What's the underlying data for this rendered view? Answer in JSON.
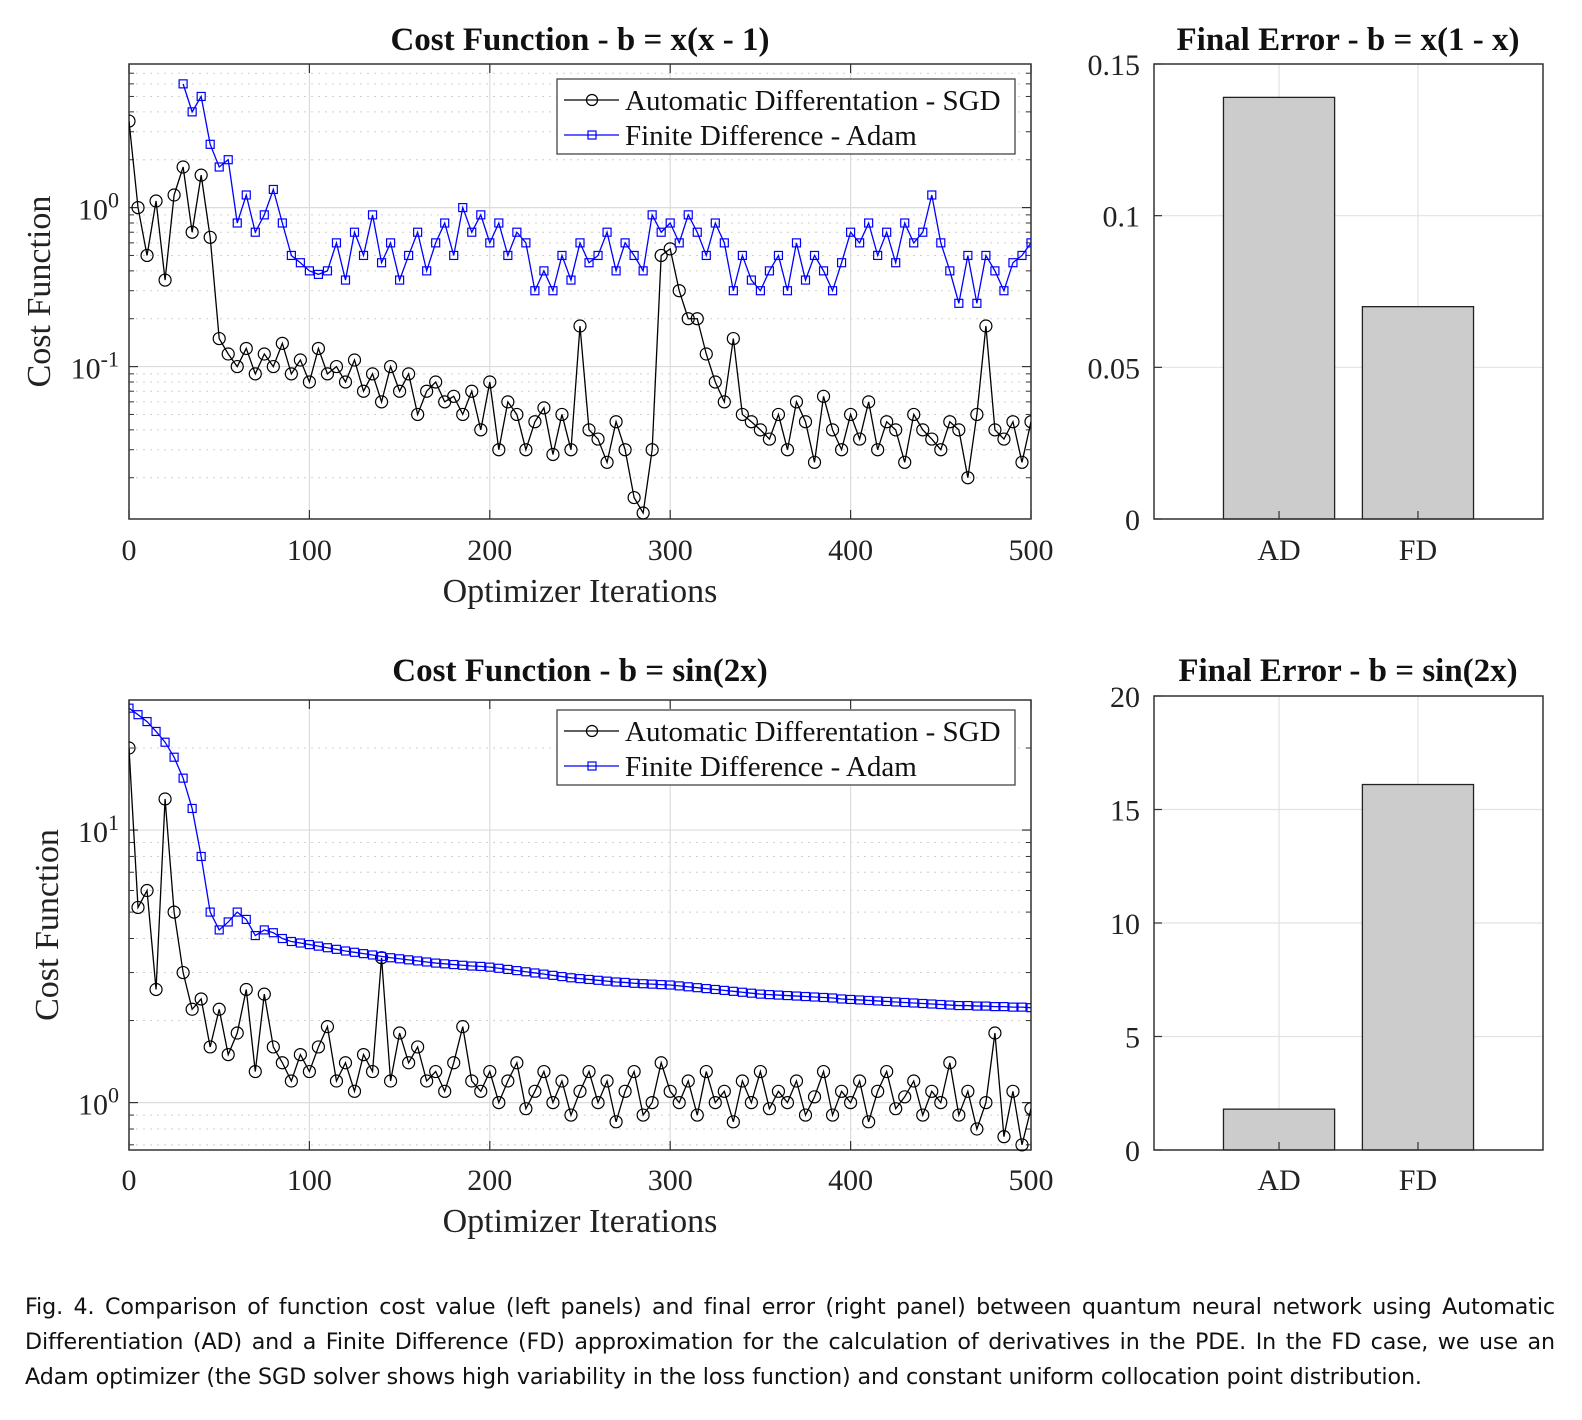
{
  "chart_data": [
    {
      "type": "line",
      "title": "Cost Function - b = x(x - 1)",
      "xlabel": "Optimizer Iterations",
      "ylabel": "Cost Function",
      "xlim": [
        0,
        500
      ],
      "ylim": [
        0.011,
        8
      ],
      "yscale": "log",
      "grid": true,
      "legend_placement": "top-right",
      "x_tick_labels": [
        "0",
        "100",
        "200",
        "300",
        "400",
        "500"
      ],
      "y_tick_labels": [
        "10^-1",
        "10^0"
      ],
      "x": [
        0,
        5,
        10,
        15,
        20,
        25,
        30,
        35,
        40,
        45,
        50,
        55,
        60,
        65,
        70,
        75,
        80,
        85,
        90,
        95,
        100,
        105,
        110,
        115,
        120,
        125,
        130,
        135,
        140,
        145,
        150,
        155,
        160,
        165,
        170,
        175,
        180,
        185,
        190,
        195,
        200,
        205,
        210,
        215,
        220,
        225,
        230,
        235,
        240,
        245,
        250,
        255,
        260,
        265,
        270,
        275,
        280,
        285,
        290,
        295,
        300,
        305,
        310,
        315,
        320,
        325,
        330,
        335,
        340,
        345,
        350,
        355,
        360,
        365,
        370,
        375,
        380,
        385,
        390,
        395,
        400,
        405,
        410,
        415,
        420,
        425,
        430,
        435,
        440,
        445,
        450,
        455,
        460,
        465,
        470,
        475,
        480,
        485,
        490,
        495,
        500
      ],
      "series": [
        {
          "name": "Automatic Differentation - SGD",
          "color": "#000000",
          "marker": "circle",
          "values": [
            3.5,
            1.0,
            0.5,
            1.1,
            0.35,
            1.2,
            1.8,
            0.7,
            1.6,
            0.65,
            0.15,
            0.12,
            0.1,
            0.13,
            0.09,
            0.12,
            0.1,
            0.14,
            0.09,
            0.11,
            0.08,
            0.13,
            0.09,
            0.1,
            0.08,
            0.11,
            0.07,
            0.09,
            0.06,
            0.1,
            0.07,
            0.09,
            0.05,
            0.07,
            0.08,
            0.06,
            0.065,
            0.05,
            0.07,
            0.04,
            0.08,
            0.03,
            0.06,
            0.05,
            0.03,
            0.045,
            0.055,
            0.028,
            0.05,
            0.03,
            0.18,
            0.04,
            0.035,
            0.025,
            0.045,
            0.03,
            0.015,
            0.012,
            0.03,
            0.5,
            0.55,
            0.3,
            0.2,
            0.2,
            0.12,
            0.08,
            0.06,
            0.15,
            0.05,
            0.045,
            0.04,
            0.035,
            0.05,
            0.03,
            0.06,
            0.045,
            0.025,
            0.065,
            0.04,
            0.03,
            0.05,
            0.035,
            0.06,
            0.03,
            0.045,
            0.04,
            0.025,
            0.05,
            0.04,
            0.035,
            0.03,
            0.045,
            0.04,
            0.02,
            0.05,
            0.18,
            0.04,
            0.035,
            0.045,
            0.025,
            0.045
          ]
        },
        {
          "name": "Finite Difference - Adam",
          "color": "#0000ff",
          "marker": "square",
          "values": [
            null,
            null,
            null,
            null,
            null,
            null,
            6,
            4,
            5,
            2.5,
            1.8,
            2,
            0.8,
            1.2,
            0.7,
            0.9,
            1.3,
            0.8,
            0.5,
            0.45,
            0.4,
            0.38,
            0.4,
            0.6,
            0.35,
            0.7,
            0.5,
            0.9,
            0.45,
            0.6,
            0.35,
            0.5,
            0.7,
            0.4,
            0.6,
            0.8,
            0.5,
            1.0,
            0.7,
            0.9,
            0.6,
            0.8,
            0.5,
            0.7,
            0.6,
            0.3,
            0.4,
            0.3,
            0.5,
            0.35,
            0.6,
            0.45,
            0.5,
            0.7,
            0.4,
            0.6,
            0.5,
            0.4,
            0.9,
            0.7,
            0.8,
            0.6,
            0.9,
            0.7,
            0.5,
            0.8,
            0.6,
            0.3,
            0.5,
            0.35,
            0.3,
            0.4,
            0.5,
            0.3,
            0.6,
            0.35,
            0.5,
            0.4,
            0.3,
            0.45,
            0.7,
            0.6,
            0.8,
            0.5,
            0.7,
            0.45,
            0.8,
            0.6,
            0.7,
            1.2,
            0.6,
            0.4,
            0.25,
            0.5,
            0.25,
            0.5,
            0.4,
            0.3,
            0.45,
            0.5,
            0.6
          ]
        }
      ]
    },
    {
      "type": "bar",
      "title": "Final Error - b = x(1 - x)",
      "categories": [
        "AD",
        "FD"
      ],
      "values": [
        0.139,
        0.07
      ],
      "ylim": [
        0,
        0.15
      ],
      "y_tick_labels": [
        "0",
        "0.05",
        "0.1",
        "0.15"
      ],
      "y_ticks": [
        0,
        0.05,
        0.1,
        0.15
      ],
      "bar_color": "#cccccc",
      "grid": true
    },
    {
      "type": "line",
      "title": "Cost Function - b = sin(2x)",
      "xlabel": "Optimizer Iterations",
      "ylabel": "Cost Function",
      "xlim": [
        0,
        500
      ],
      "ylim": [
        0.67,
        30
      ],
      "yscale": "log",
      "grid": true,
      "legend_placement": "top-right",
      "x_tick_labels": [
        "0",
        "100",
        "200",
        "300",
        "400",
        "500"
      ],
      "y_tick_labels": [
        "10^0",
        "10^1"
      ],
      "x": [
        0,
        5,
        10,
        15,
        20,
        25,
        30,
        35,
        40,
        45,
        50,
        55,
        60,
        65,
        70,
        75,
        80,
        85,
        90,
        95,
        100,
        105,
        110,
        115,
        120,
        125,
        130,
        135,
        140,
        145,
        150,
        155,
        160,
        165,
        170,
        175,
        180,
        185,
        190,
        195,
        200,
        205,
        210,
        215,
        220,
        225,
        230,
        235,
        240,
        245,
        250,
        255,
        260,
        265,
        270,
        275,
        280,
        285,
        290,
        295,
        300,
        305,
        310,
        315,
        320,
        325,
        330,
        335,
        340,
        345,
        350,
        355,
        360,
        365,
        370,
        375,
        380,
        385,
        390,
        395,
        400,
        405,
        410,
        415,
        420,
        425,
        430,
        435,
        440,
        445,
        450,
        455,
        460,
        465,
        470,
        475,
        480,
        485,
        490,
        495,
        500
      ],
      "series": [
        {
          "name": "Automatic Differentation - SGD",
          "color": "#000000",
          "marker": "circle",
          "values": [
            20,
            5.2,
            6,
            2.6,
            13,
            5,
            3,
            2.2,
            2.4,
            1.6,
            2.2,
            1.5,
            1.8,
            2.6,
            1.3,
            2.5,
            1.6,
            1.4,
            1.2,
            1.5,
            1.3,
            1.6,
            1.9,
            1.2,
            1.4,
            1.1,
            1.5,
            1.3,
            3.4,
            1.2,
            1.8,
            1.4,
            1.6,
            1.2,
            1.3,
            1.1,
            1.4,
            1.9,
            1.2,
            1.1,
            1.3,
            1.0,
            1.2,
            1.4,
            0.95,
            1.1,
            1.3,
            1.0,
            1.2,
            0.9,
            1.1,
            1.3,
            1.0,
            1.2,
            0.85,
            1.1,
            1.3,
            0.9,
            1.0,
            1.4,
            1.1,
            1.0,
            1.2,
            0.9,
            1.3,
            1.0,
            1.1,
            0.85,
            1.2,
            1.0,
            1.3,
            0.95,
            1.1,
            1.0,
            1.2,
            0.9,
            1.05,
            1.3,
            0.9,
            1.1,
            1.0,
            1.2,
            0.85,
            1.1,
            1.3,
            0.95,
            1.05,
            1.2,
            0.9,
            1.1,
            1.0,
            1.4,
            0.9,
            1.1,
            0.8,
            1.0,
            1.8,
            0.75,
            1.1,
            0.7,
            0.95
          ]
        },
        {
          "name": "Finite Difference - Adam",
          "color": "#0000ff",
          "marker": "square",
          "values": [
            28,
            26.5,
            25,
            23,
            21,
            18.5,
            15.5,
            12,
            8,
            5,
            4.3,
            4.6,
            5.0,
            4.7,
            4.1,
            4.3,
            4.2,
            4.0,
            3.9,
            3.85,
            3.8,
            3.75,
            3.7,
            3.65,
            3.6,
            3.56,
            3.52,
            3.48,
            3.44,
            3.4,
            3.37,
            3.34,
            3.31,
            3.28,
            3.25,
            3.23,
            3.21,
            3.19,
            3.17,
            3.16,
            3.14,
            3.11,
            3.08,
            3.05,
            3.02,
            2.99,
            2.96,
            2.93,
            2.9,
            2.87,
            2.85,
            2.83,
            2.81,
            2.79,
            2.77,
            2.76,
            2.74,
            2.73,
            2.72,
            2.71,
            2.7,
            2.68,
            2.66,
            2.64,
            2.62,
            2.6,
            2.58,
            2.56,
            2.54,
            2.52,
            2.5,
            2.49,
            2.48,
            2.47,
            2.46,
            2.45,
            2.44,
            2.43,
            2.42,
            2.4,
            2.39,
            2.38,
            2.37,
            2.36,
            2.35,
            2.34,
            2.33,
            2.32,
            2.31,
            2.3,
            2.29,
            2.28,
            2.27,
            2.27,
            2.26,
            2.26,
            2.25,
            2.25,
            2.24,
            2.24,
            2.23
          ]
        }
      ]
    },
    {
      "type": "bar",
      "title": "Final Error - b = sin(2x)",
      "categories": [
        "AD",
        "FD"
      ],
      "values": [
        1.8,
        16.1
      ],
      "ylim": [
        0,
        20
      ],
      "y_tick_labels": [
        "0",
        "5",
        "10",
        "15",
        "20"
      ],
      "y_ticks": [
        0,
        5,
        10,
        15,
        20
      ],
      "bar_color": "#cccccc",
      "grid": true
    }
  ],
  "caption": "Fig. 4.  Comparison of function cost value (left panels) and final error (right panel) between quantum neural network using Automatic Differentiation (AD) and a Finite Difference (FD) approximation for the calculation of derivatives in the PDE. In the FD case, we use an Adam optimizer (the SGD solver shows high variability in the loss function) and constant uniform collocation point distribution."
}
